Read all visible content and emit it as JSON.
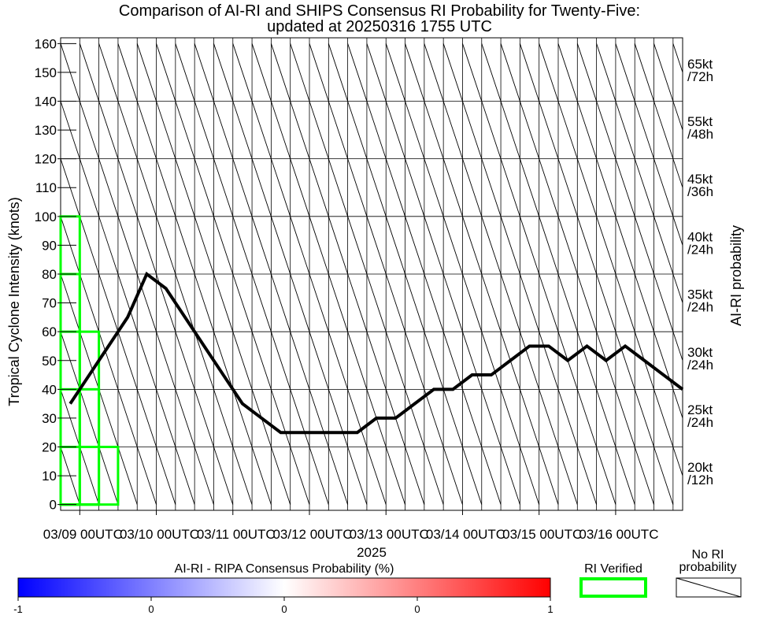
{
  "chart_data": {
    "type": "line",
    "title_line1": "Comparison of AI-RI and SHIPS Consensus RI Probability for Twenty-Five:",
    "title_line2": "updated at 20250316 1755 UTC",
    "ylabel": "Tropical Cyclone Intensity (knots)",
    "right_ylabel": "AI-RI probability",
    "year_label": "2025",
    "ylim": [
      -2,
      162
    ],
    "yticks": [
      0,
      10,
      20,
      30,
      40,
      50,
      60,
      70,
      80,
      90,
      100,
      110,
      120,
      130,
      140,
      150,
      160
    ],
    "xlim_hours": [
      0,
      195
    ],
    "x_tick_labels": [
      {
        "label": "03/09 00UTC",
        "hour": 6
      },
      {
        "label": "03/10 00UTC",
        "hour": 30
      },
      {
        "label": "03/11 00UTC",
        "hour": 54
      },
      {
        "label": "03/12 00UTC",
        "hour": 78
      },
      {
        "label": "03/13 00UTC",
        "hour": 102
      },
      {
        "label": "03/14 00UTC",
        "hour": 126
      },
      {
        "label": "03/15 00UTC",
        "hour": 150
      },
      {
        "label": "03/16 00UTC",
        "hour": 174
      }
    ],
    "right_axis_labels": [
      {
        "line1": "65kt",
        "line2": "/72h",
        "y": 150
      },
      {
        "line1": "55kt",
        "line2": "/48h",
        "y": 130
      },
      {
        "line1": "45kt",
        "line2": "/36h",
        "y": 110
      },
      {
        "line1": "40kt",
        "line2": "/24h",
        "y": 90
      },
      {
        "line1": "35kt",
        "line2": "/24h",
        "y": 70
      },
      {
        "line1": "30kt",
        "line2": "/24h",
        "y": 50
      },
      {
        "line1": "25kt",
        "line2": "/24h",
        "y": 30
      },
      {
        "line1": "20kt",
        "line2": "/12h",
        "y": 10
      }
    ],
    "series": [
      {
        "x_hours": [
          3,
          9,
          12,
          15,
          18,
          21,
          24,
          27,
          33,
          39,
          45,
          51,
          57,
          63,
          69,
          75,
          81,
          87,
          93,
          99,
          105,
          111,
          117,
          123,
          129,
          135,
          141,
          147,
          153,
          159,
          165,
          171,
          177,
          183,
          189,
          195
        ],
        "values": [
          35,
          45,
          50,
          55,
          60,
          65,
          72.5,
          80,
          75,
          65,
          55,
          45,
          35,
          30,
          25,
          25,
          25,
          25,
          25,
          30,
          30,
          35,
          40,
          40,
          45,
          45,
          50,
          55,
          55,
          50,
          55,
          50,
          55,
          50,
          45,
          40
        ]
      }
    ],
    "ri_verified_boxes": [
      {
        "x0_hours": 0,
        "x1_hours": 6,
        "y0": 0,
        "y1": 100
      },
      {
        "x0_hours": 0,
        "x1_hours": 6,
        "y0": 0,
        "y1": 80
      },
      {
        "x0_hours": 0,
        "x1_hours": 12,
        "y0": 0,
        "y1": 60
      },
      {
        "x0_hours": 0,
        "x1_hours": 12,
        "y0": 0,
        "y1": 40
      },
      {
        "x0_hours": 0,
        "x1_hours": 18,
        "y0": 0,
        "y1": 20
      }
    ],
    "colors": {
      "line": "#000000",
      "ri_verified": "#00ff00",
      "colorbar_low": "#0000ff",
      "colorbar_mid": "#ffffff",
      "colorbar_high": "#ff0000"
    },
    "grid": true,
    "hatched_cells": "no RI probability",
    "legend": {
      "colorbar_title": "AI-RI - RIPA Consensus Probability (%)",
      "colorbar_ticks": [
        "-1",
        "0",
        "0",
        "0",
        "1"
      ],
      "ri_verified_label": "RI Verified",
      "no_ri_line1": "No RI",
      "no_ri_line2": "probability"
    }
  }
}
